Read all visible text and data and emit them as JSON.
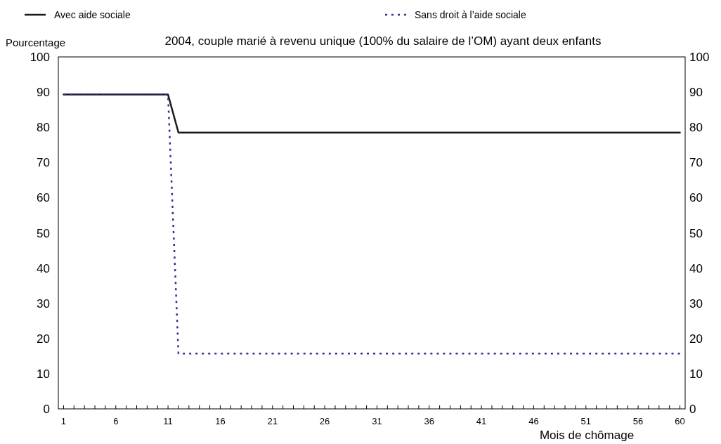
{
  "chart_data": {
    "type": "line",
    "title": "2004, couple marié à revenu unique (100% du salaire de l’OM) ayant deux enfants",
    "ylabel": "Pourcentage",
    "xlabel": "Mois de chômage",
    "xlim": [
      0.5,
      60.5
    ],
    "xticks": [
      1,
      {
        "value": 2,
        "label": null
      },
      {
        "value": 3,
        "label": null
      },
      {
        "value": 4,
        "label": null
      },
      {
        "value": 5,
        "label": null
      },
      6,
      {
        "value": 7,
        "label": null
      },
      {
        "value": 8,
        "label": null
      },
      {
        "value": 9,
        "label": null
      },
      {
        "value": 10,
        "label": null
      },
      11,
      {
        "value": 12,
        "label": null
      },
      {
        "value": 13,
        "label": null
      },
      {
        "value": 14,
        "label": null
      },
      {
        "value": 15,
        "label": null
      },
      16,
      {
        "value": 17,
        "label": null
      },
      {
        "value": 18,
        "label": null
      },
      {
        "value": 19,
        "label": null
      },
      {
        "value": 20,
        "label": null
      },
      21,
      {
        "value": 22,
        "label": null
      },
      {
        "value": 23,
        "label": null
      },
      {
        "value": 24,
        "label": null
      },
      {
        "value": 25,
        "label": null
      },
      26,
      {
        "value": 27,
        "label": null
      },
      {
        "value": 28,
        "label": null
      },
      {
        "value": 29,
        "label": null
      },
      {
        "value": 30,
        "label": null
      },
      31,
      {
        "value": 32,
        "label": null
      },
      {
        "value": 33,
        "label": null
      },
      {
        "value": 34,
        "label": null
      },
      {
        "value": 35,
        "label": null
      },
      36,
      {
        "value": 37,
        "label": null
      },
      {
        "value": 38,
        "label": null
      },
      {
        "value": 39,
        "label": null
      },
      {
        "value": 40,
        "label": null
      },
      41,
      {
        "value": 42,
        "label": null
      },
      {
        "value": 43,
        "label": null
      },
      {
        "value": 44,
        "label": null
      },
      {
        "value": 45,
        "label": null
      },
      46,
      {
        "value": 47,
        "label": null
      },
      {
        "value": 48,
        "label": null
      },
      {
        "value": 49,
        "label": null
      },
      {
        "value": 50,
        "label": null
      },
      51,
      {
        "value": 52,
        "label": null
      },
      {
        "value": 53,
        "label": null
      },
      {
        "value": 54,
        "label": null
      },
      {
        "value": 55,
        "label": null
      },
      56,
      {
        "value": 57,
        "label": null
      },
      {
        "value": 58,
        "label": null
      },
      {
        "value": 59,
        "label": null
      },
      60
    ],
    "ylim": [
      0,
      100
    ],
    "yticks": [
      0,
      10,
      20,
      30,
      40,
      50,
      60,
      70,
      80,
      90,
      100
    ],
    "y2lim": [
      0,
      100
    ],
    "y2ticks": [
      0,
      10,
      20,
      30,
      40,
      50,
      60,
      70,
      80,
      90,
      100
    ],
    "grid": false,
    "legend": "top",
    "marker": "none",
    "series": [
      {
        "name": "Avec aide sociale",
        "color": "#1a1a1a",
        "line_style": "solid",
        "x": [
          1,
          11,
          12,
          60
        ],
        "values": [
          89.3,
          89.3,
          78.5,
          78.5
        ]
      },
      {
        "name": "Sans droit à l’aide sociale",
        "color": "#2e3192",
        "line_style": "dotted",
        "x": [
          1,
          11,
          12,
          60
        ],
        "values": [
          89.3,
          89.3,
          15.7,
          15.7
        ]
      }
    ]
  }
}
